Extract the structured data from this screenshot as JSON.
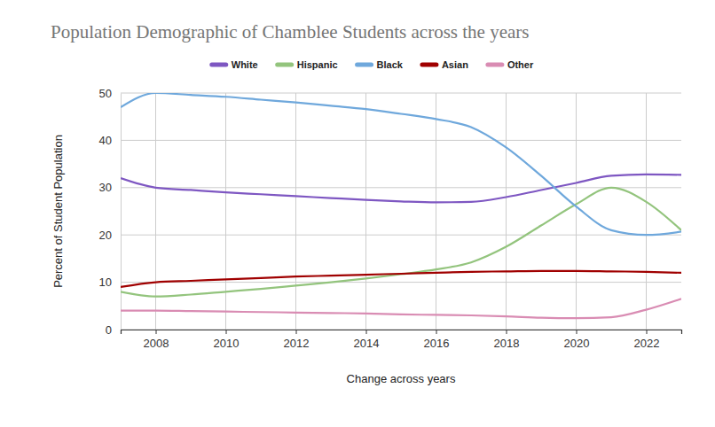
{
  "chart_data": {
    "type": "line",
    "title": "Population Demographic of Chamblee Students across the years",
    "x_label": "Change across years",
    "y_label": "Percent of Student Population",
    "x": [
      2007,
      2008,
      2009,
      2010,
      2011,
      2012,
      2013,
      2014,
      2015,
      2016,
      2017,
      2018,
      2019,
      2020,
      2021,
      2022,
      2023
    ],
    "series": [
      {
        "name": "White",
        "color": "#7e57c2",
        "values": [
          32,
          30,
          29.5,
          29,
          28.6,
          28.2,
          27.8,
          27.4,
          27.1,
          26.9,
          27,
          28,
          29.5,
          31,
          32.5,
          32.8,
          32.7
        ]
      },
      {
        "name": "Hispanic",
        "color": "#93c47d",
        "values": [
          8,
          7,
          7.4,
          8,
          8.6,
          9.3,
          10,
          10.8,
          11.7,
          12.7,
          14.2,
          17.5,
          22,
          26.5,
          30,
          27,
          21
        ]
      },
      {
        "name": "Black",
        "color": "#6fa8dc",
        "values": [
          47,
          50,
          49.6,
          49.2,
          48.6,
          48,
          47.3,
          46.6,
          45.6,
          44.5,
          42.8,
          38.5,
          32.5,
          26,
          21,
          20,
          20.7
        ]
      },
      {
        "name": "Asian",
        "color": "#a00000",
        "values": [
          9,
          10,
          10.3,
          10.6,
          10.9,
          11.2,
          11.4,
          11.6,
          11.8,
          12,
          12.2,
          12.3,
          12.4,
          12.4,
          12.3,
          12.2,
          12
        ]
      },
      {
        "name": "Other",
        "color": "#d98cb3",
        "values": [
          4,
          4,
          3.9,
          3.8,
          3.7,
          3.6,
          3.5,
          3.4,
          3.2,
          3.1,
          3,
          2.8,
          2.5,
          2.4,
          2.6,
          4.2,
          6.5
        ]
      }
    ],
    "xlim": [
      2007,
      2023
    ],
    "ylim": [
      0,
      50
    ],
    "xticks": [
      2008,
      2010,
      2012,
      2014,
      2016,
      2018,
      2020,
      2022
    ],
    "yticks": [
      0,
      10,
      20,
      30,
      40,
      50
    ],
    "grid": true,
    "legend": "top"
  }
}
